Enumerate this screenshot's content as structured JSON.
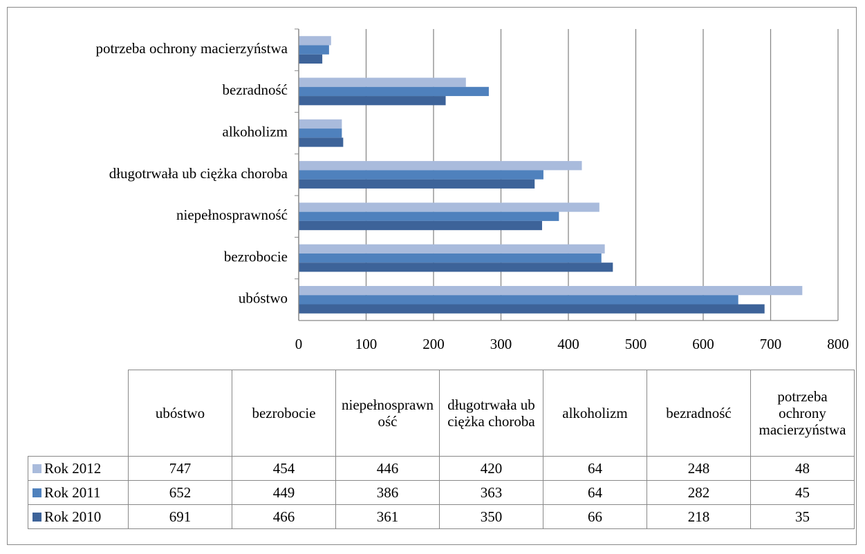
{
  "chart_data": {
    "type": "bar",
    "orientation": "horizontal",
    "categories": [
      "ubóstwo",
      "bezrobocie",
      "niepełnosprawność",
      "długotrwała ub ciężka choroba",
      "alkoholizm",
      "bezradność",
      "potrzeba ochrony macierzyństwa"
    ],
    "series": [
      {
        "name": "Rok 2012",
        "color": "#a9bbdc",
        "values": [
          747,
          454,
          446,
          420,
          64,
          248,
          48
        ]
      },
      {
        "name": "Rok 2011",
        "color": "#4f81bd",
        "values": [
          652,
          449,
          386,
          363,
          64,
          282,
          45
        ]
      },
      {
        "name": "Rok 2010",
        "color": "#3d6399",
        "values": [
          691,
          466,
          361,
          350,
          66,
          218,
          35
        ]
      }
    ],
    "xlim": [
      0,
      800
    ],
    "xticks": [
      0,
      100,
      200,
      300,
      400,
      500,
      600,
      700,
      800
    ],
    "grid": true
  }
}
